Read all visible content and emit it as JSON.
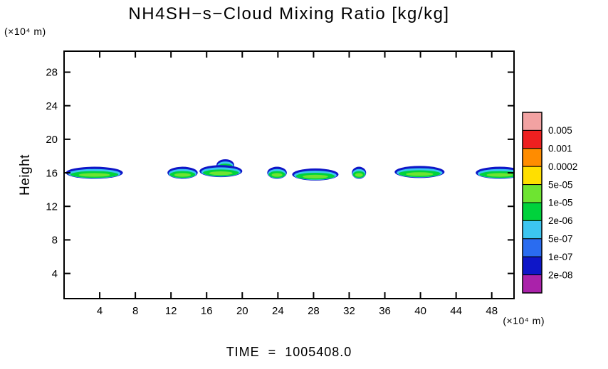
{
  "title": "NH4SH−s−Cloud Mixing Ratio [kg/kg]",
  "time_label": "TIME  =  1005408.0",
  "y_axis": {
    "label": "Height",
    "unit": "(×10⁴ m)"
  },
  "x_axis": {
    "unit": "(×10⁴ m)"
  },
  "colorbar": {
    "labels": [
      "0.005",
      "0.001",
      "0.0002",
      "5e-05",
      "1e-05",
      "2e-06",
      "5e-07",
      "1e-07",
      "2e-08"
    ]
  },
  "chart_data": {
    "type": "filled-contour",
    "title": "NH4SH−s−Cloud Mixing Ratio [kg/kg]",
    "xlabel_unit": "(×10⁴ m)",
    "ylabel": "Height",
    "ylabel_unit": "(×10⁴ m)",
    "x_range": [
      0,
      50.5
    ],
    "y_range": [
      1,
      30.5
    ],
    "x_ticks": [
      4,
      8,
      12,
      16,
      20,
      24,
      28,
      32,
      36,
      40,
      44,
      48
    ],
    "y_ticks": [
      4,
      8,
      12,
      16,
      20,
      24,
      28
    ],
    "levels_labels": [
      "0.005",
      "0.001",
      "0.0002",
      "5e-05",
      "1e-05",
      "2e-06",
      "5e-07",
      "1e-07",
      "2e-08"
    ],
    "palette": [
      "#f2a2a2",
      "#ee2020",
      "#ff8c00",
      "#ffdf00",
      "#6ee431",
      "#00d23c",
      "#3cc6f0",
      "#2a6cf0",
      "#0e16c8",
      "#aa22aa"
    ],
    "cloud_bands": [
      {
        "cx": 3.4,
        "hw": 3.2,
        "cy": 15.9
      },
      {
        "cx": 13.3,
        "hw": 1.7,
        "cy": 15.9
      },
      {
        "cx": 18.1,
        "hw": 1.0,
        "cy": 16.8
      },
      {
        "cx": 17.6,
        "hw": 2.4,
        "cy": 16.1
      },
      {
        "cx": 23.9,
        "hw": 1.1,
        "cy": 15.9
      },
      {
        "cx": 28.2,
        "hw": 2.6,
        "cy": 15.7
      },
      {
        "cx": 33.1,
        "hw": 0.8,
        "cy": 15.9
      },
      {
        "cx": 39.9,
        "hw": 2.8,
        "cy": 16.0
      },
      {
        "cx": 48.9,
        "hw": 2.7,
        "cy": 15.9
      }
    ],
    "band_layers": [
      {
        "color": "#0e16c8",
        "rxf": 1.0,
        "ry": 0.72,
        "dy": 0.1
      },
      {
        "color": "#3cc6f0",
        "rxf": 0.92,
        "ry": 0.55,
        "dy": 0.0
      },
      {
        "color": "#00d23c",
        "rxf": 0.84,
        "ry": 0.4,
        "dy": -0.1
      },
      {
        "color": "#6ee431",
        "rxf": 0.55,
        "ry": 0.22,
        "dy": -0.15
      }
    ],
    "legend_position": "right",
    "grid": false
  }
}
